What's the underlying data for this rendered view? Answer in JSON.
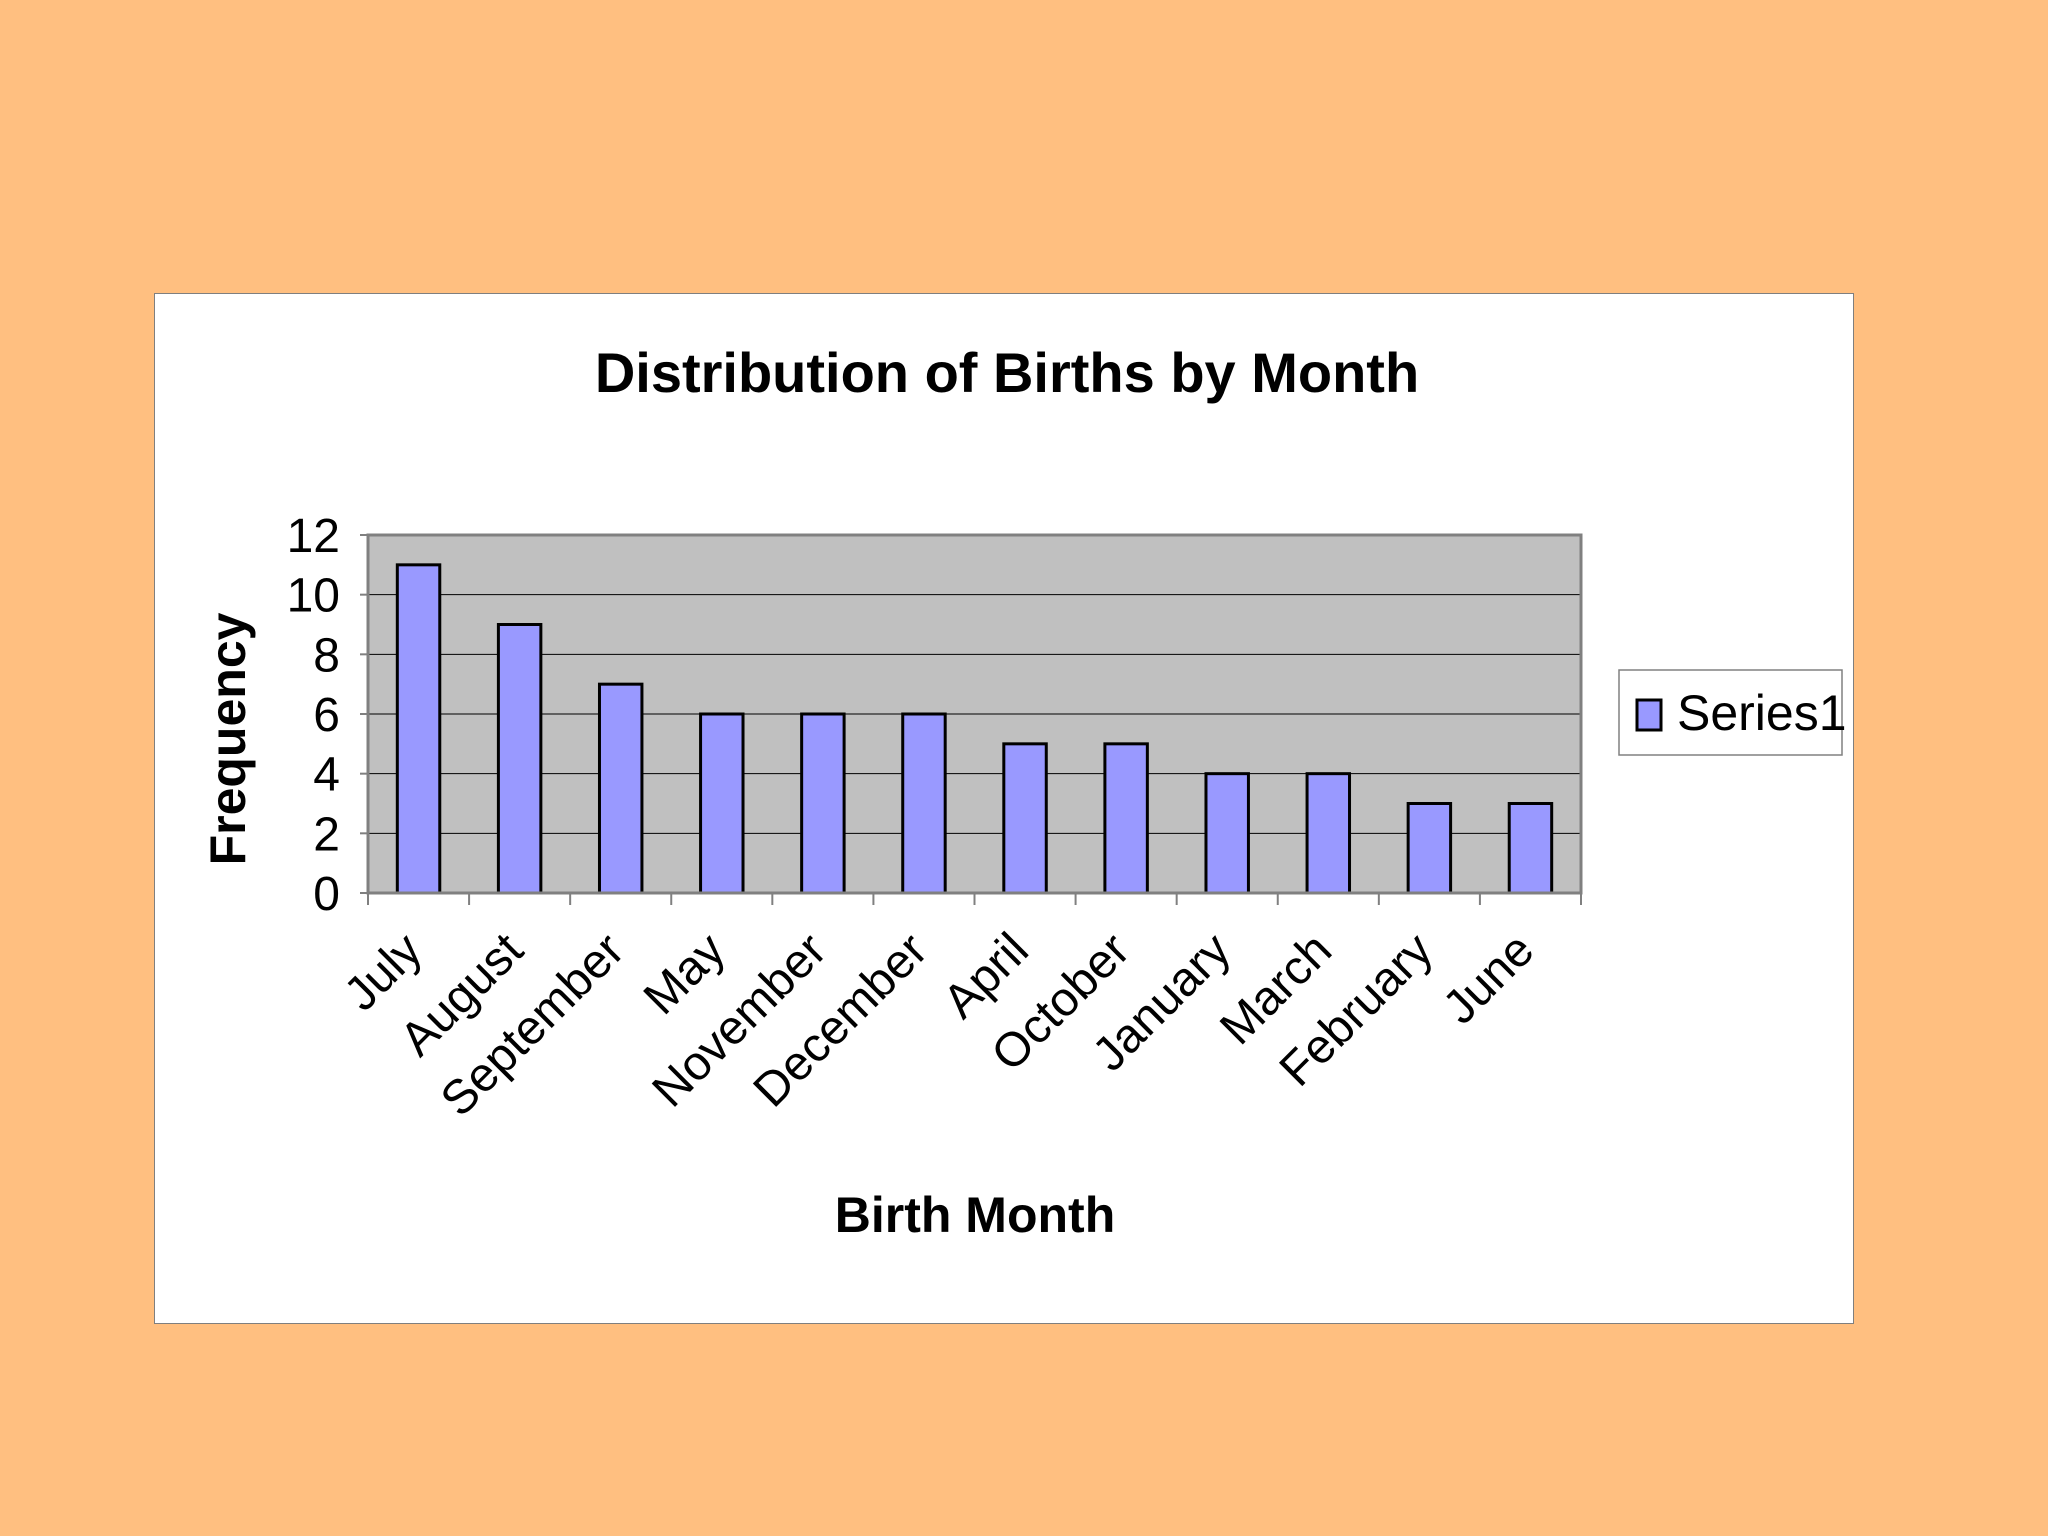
{
  "chart_data": {
    "type": "bar",
    "title": "Distribution of Births by Month",
    "xlabel": "Birth Month",
    "ylabel": "Frequency",
    "categories": [
      "July",
      "August",
      "September",
      "May",
      "November",
      "December",
      "April",
      "October",
      "January",
      "March",
      "February",
      "June"
    ],
    "series": [
      {
        "name": "Series1",
        "values": [
          11,
          9,
          7,
          6,
          6,
          6,
          5,
          5,
          4,
          4,
          3,
          3
        ],
        "color": "#9999FF"
      }
    ],
    "ylim": [
      0,
      12
    ],
    "yticks": [
      "0",
      "2",
      "4",
      "6",
      "8",
      "10",
      "12"
    ],
    "grid": true,
    "legend_position": "right",
    "plot_background": "#C0C0C0",
    "page_background": "#FFBF80"
  }
}
